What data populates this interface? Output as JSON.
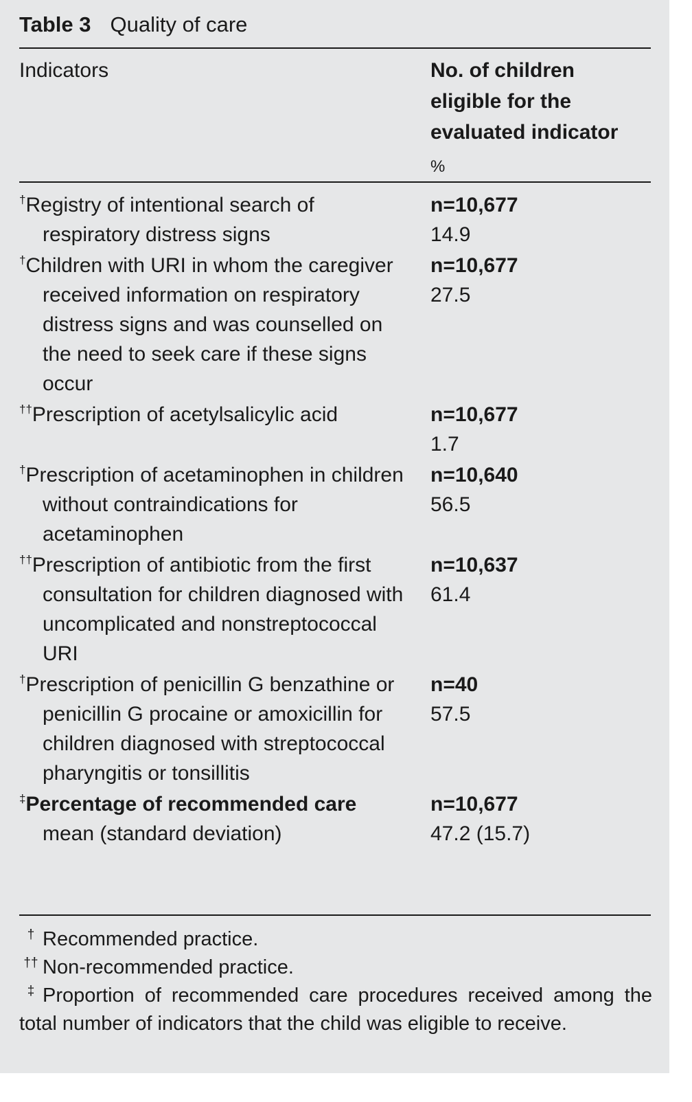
{
  "title": {
    "label": "Table 3",
    "text": "Quality of care"
  },
  "header": {
    "indicators": "Indicators",
    "eligible": "No. of children eligible for the evaluated indicator",
    "percent": "%"
  },
  "rows": [
    {
      "mark": "†",
      "indicator": "Registry of intentional search of respiratory distress signs",
      "n": "n=10,677",
      "percent": "14.9"
    },
    {
      "mark": "†",
      "indicator": "Children with URI in whom the caregiver received information on respiratory distress signs and was counselled on the need to seek care if these signs occur",
      "n": "n=10,677",
      "percent": "27.5"
    },
    {
      "mark": "††",
      "indicator": "Prescription of acetylsalicylic acid",
      "n": "n=10,677",
      "percent": "1.7"
    },
    {
      "mark": "†",
      "indicator": "Prescription of acetaminophen in children without contraindications for acetaminophen",
      "n": "n=10,640",
      "percent": "56.5"
    },
    {
      "mark": "††",
      "indicator": "Prescription of antibiotic from the first consultation for children diagnosed with uncomplicated and nonstreptococcal URI",
      "n": "n=10,637",
      "percent": "61.4"
    },
    {
      "mark": "†",
      "indicator": "Prescription of penicillin G benzathine or penicillin G procaine or amoxicillin for children diagnosed with streptococcal pharyngitis or tonsillitis",
      "n": "n=40",
      "percent": "57.5"
    },
    {
      "mark": "‡",
      "indicator": "Percentage of recommended care",
      "note": "mean (standard deviation)",
      "n": "n=10,677",
      "percent": "47.2 (15.7)"
    }
  ],
  "footnotes": [
    {
      "mark": "†",
      "text": "Recommended practice."
    },
    {
      "mark": "††",
      "text": "Non-recommended practice."
    },
    {
      "mark": "‡",
      "text": "Proportion of recommended care procedures received among the total number of indicators that the child was eligible to receive."
    }
  ]
}
